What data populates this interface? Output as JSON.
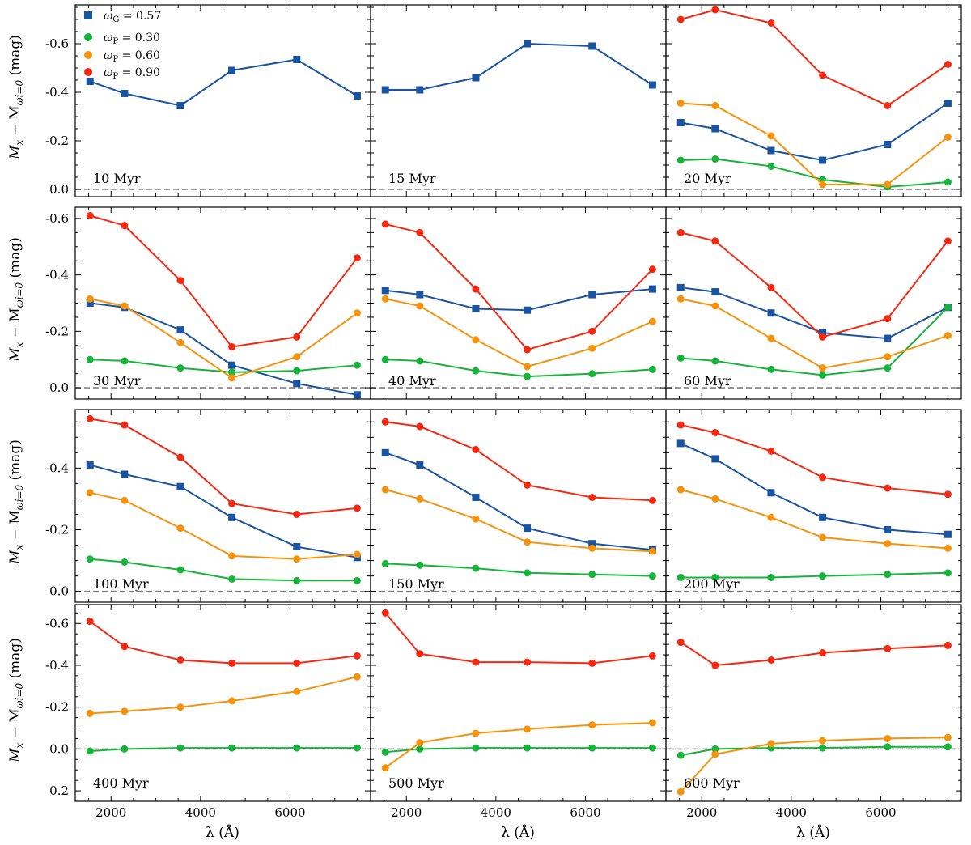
{
  "figure": {
    "xlabel": "λ (Å)",
    "ylabel_main": "M",
    "ylabel_sub1": "x",
    "ylabel_mid": " − M",
    "ylabel_sub2": "ωi=0",
    "ylabel_unit": " (mag)"
  },
  "legend": {
    "placement": "top-left of first panel",
    "entries": [
      {
        "symbol": "ω",
        "sub": "G",
        "value": " = 0.57",
        "marker": "square",
        "color": "#1a53a0"
      },
      {
        "symbol": "ω",
        "sub": "P",
        "value": " = 0.30",
        "marker": "circle",
        "color": "#18b33a"
      },
      {
        "symbol": "ω",
        "sub": "P",
        "value": " = 0.60",
        "marker": "circle",
        "color": "#f5930f"
      },
      {
        "symbol": "ω",
        "sub": "P",
        "value": " = 0.90",
        "marker": "circle",
        "color": "#f52812"
      }
    ]
  },
  "colors": {
    "wG057": "#1a53a0",
    "wP030": "#18b33a",
    "wP060": "#f5930f",
    "wP090": "#f52812",
    "zero_line": "#808080"
  },
  "chart_data": [
    {
      "type": "line",
      "title": "10 Myr",
      "xlim": [
        1200,
        7800
      ],
      "ylim": [
        0.03,
        -0.76
      ],
      "yticks": [
        0.0,
        -0.2,
        -0.4,
        -0.6
      ],
      "ytick_labels": [
        "0.0",
        "-0.2",
        "-0.4",
        "-0.6"
      ],
      "x": [
        1530,
        2300,
        3550,
        4700,
        6150,
        7500
      ],
      "series": [
        {
          "name": "ωG = 0.57",
          "marker": "square",
          "color": "#1a53a0",
          "values": [
            -0.445,
            -0.395,
            -0.345,
            -0.49,
            -0.535,
            -0.385
          ]
        }
      ]
    },
    {
      "type": "line",
      "title": "15 Myr",
      "xlim": [
        1200,
        7800
      ],
      "ylim": [
        0.03,
        -0.76
      ],
      "yticks": [
        0.0,
        -0.2,
        -0.4,
        -0.6
      ],
      "ytick_labels": [
        "0.0",
        "-0.2",
        "-0.4",
        "-0.6"
      ],
      "x": [
        1530,
        2300,
        3550,
        4700,
        6150,
        7500
      ],
      "series": [
        {
          "name": "ωG = 0.57",
          "marker": "square",
          "color": "#1a53a0",
          "values": [
            -0.41,
            -0.41,
            -0.46,
            -0.6,
            -0.59,
            -0.43
          ]
        }
      ]
    },
    {
      "type": "line",
      "title": "20 Myr",
      "xlim": [
        1200,
        7800
      ],
      "ylim": [
        0.03,
        -0.76
      ],
      "yticks": [
        0.0,
        -0.2,
        -0.4,
        -0.6
      ],
      "ytick_labels": [
        "0.0",
        "-0.2",
        "-0.4",
        "-0.6"
      ],
      "x": [
        1530,
        2300,
        3550,
        4700,
        6150,
        7500
      ],
      "series": [
        {
          "name": "ωG = 0.57",
          "marker": "square",
          "color": "#1a53a0",
          "values": [
            -0.275,
            -0.25,
            -0.16,
            -0.12,
            -0.185,
            -0.355
          ]
        },
        {
          "name": "ωP = 0.30",
          "marker": "circle",
          "color": "#18b33a",
          "values": [
            -0.12,
            -0.125,
            -0.095,
            -0.04,
            -0.01,
            -0.03
          ]
        },
        {
          "name": "ωP = 0.60",
          "marker": "circle",
          "color": "#f5930f",
          "values": [
            -0.355,
            -0.345,
            -0.22,
            -0.02,
            -0.02,
            -0.215
          ]
        },
        {
          "name": "ωP = 0.90",
          "marker": "circle",
          "color": "#f52812",
          "values": [
            -0.7,
            -0.74,
            -0.685,
            -0.47,
            -0.345,
            -0.515
          ]
        }
      ]
    },
    {
      "type": "line",
      "title": "30 Myr",
      "xlim": [
        1200,
        7800
      ],
      "ylim": [
        0.04,
        -0.64
      ],
      "yticks": [
        0.0,
        -0.2,
        -0.4,
        -0.6
      ],
      "ytick_labels": [
        "0.0",
        "-0.2",
        "-0.4",
        "-0.6"
      ],
      "x": [
        1530,
        2300,
        3550,
        4700,
        6150,
        7500
      ],
      "series": [
        {
          "name": "ωG = 0.57",
          "marker": "square",
          "color": "#1a53a0",
          "values": [
            -0.3,
            -0.285,
            -0.205,
            -0.08,
            -0.015,
            0.025
          ]
        },
        {
          "name": "ωP = 0.30",
          "marker": "circle",
          "color": "#18b33a",
          "values": [
            -0.1,
            -0.095,
            -0.07,
            -0.055,
            -0.06,
            -0.08
          ]
        },
        {
          "name": "ωP = 0.60",
          "marker": "circle",
          "color": "#f5930f",
          "values": [
            -0.315,
            -0.29,
            -0.16,
            -0.035,
            -0.11,
            -0.265
          ]
        },
        {
          "name": "ωP = 0.90",
          "marker": "circle",
          "color": "#f52812",
          "values": [
            -0.61,
            -0.575,
            -0.38,
            -0.145,
            -0.18,
            -0.46
          ]
        }
      ]
    },
    {
      "type": "line",
      "title": "40 Myr",
      "xlim": [
        1200,
        7800
      ],
      "ylim": [
        0.04,
        -0.64
      ],
      "yticks": [
        0.0,
        -0.2,
        -0.4,
        -0.6
      ],
      "ytick_labels": [
        "0.0",
        "-0.2",
        "-0.4",
        "-0.6"
      ],
      "x": [
        1530,
        2300,
        3550,
        4700,
        6150,
        7500
      ],
      "series": [
        {
          "name": "ωG = 0.57",
          "marker": "square",
          "color": "#1a53a0",
          "values": [
            -0.345,
            -0.33,
            -0.28,
            -0.275,
            -0.33,
            -0.35
          ]
        },
        {
          "name": "ωP = 0.30",
          "marker": "circle",
          "color": "#18b33a",
          "values": [
            -0.1,
            -0.095,
            -0.06,
            -0.04,
            -0.05,
            -0.065
          ]
        },
        {
          "name": "ωP = 0.60",
          "marker": "circle",
          "color": "#f5930f",
          "values": [
            -0.315,
            -0.29,
            -0.17,
            -0.075,
            -0.14,
            -0.235
          ]
        },
        {
          "name": "ωP = 0.90",
          "marker": "circle",
          "color": "#f52812",
          "values": [
            -0.58,
            -0.55,
            -0.35,
            -0.135,
            -0.2,
            -0.42
          ]
        }
      ]
    },
    {
      "type": "line",
      "title": "60 Myr",
      "xlim": [
        1200,
        7800
      ],
      "ylim": [
        0.04,
        -0.64
      ],
      "yticks": [
        0.0,
        -0.2,
        -0.4,
        -0.6
      ],
      "ytick_labels": [
        "0.0",
        "-0.2",
        "-0.4",
        "-0.6"
      ],
      "x": [
        1530,
        2300,
        3550,
        4700,
        6150,
        7500
      ],
      "series": [
        {
          "name": "ωG = 0.57",
          "marker": "square",
          "color": "#1a53a0",
          "values": [
            -0.355,
            -0.34,
            -0.265,
            -0.195,
            -0.175,
            -0.285
          ]
        },
        {
          "name": "ωP = 0.30",
          "marker": "circle",
          "color": "#18b33a",
          "values": [
            -0.105,
            -0.095,
            -0.065,
            -0.045,
            -0.07,
            -0.285
          ]
        },
        {
          "name": "ωP = 0.60",
          "marker": "circle",
          "color": "#f5930f",
          "values": [
            -0.315,
            -0.29,
            -0.175,
            -0.07,
            -0.11,
            -0.185
          ]
        },
        {
          "name": "ωP = 0.90",
          "marker": "circle",
          "color": "#f52812",
          "values": [
            -0.55,
            -0.52,
            -0.355,
            -0.18,
            -0.245,
            -0.52
          ]
        }
      ]
    },
    {
      "type": "line",
      "title": "100 Myr",
      "xlim": [
        1200,
        7800
      ],
      "ylim": [
        0.035,
        -0.59
      ],
      "yticks": [
        0.0,
        -0.2,
        -0.4
      ],
      "ytick_labels": [
        "0.0",
        "-0.2",
        "-0.4"
      ],
      "x": [
        1530,
        2300,
        3550,
        4700,
        6150,
        7500
      ],
      "series": [
        {
          "name": "ωG = 0.57",
          "marker": "square",
          "color": "#1a53a0",
          "values": [
            -0.41,
            -0.38,
            -0.34,
            -0.24,
            -0.145,
            -0.11
          ]
        },
        {
          "name": "ωP = 0.30",
          "marker": "circle",
          "color": "#18b33a",
          "values": [
            -0.105,
            -0.095,
            -0.07,
            -0.04,
            -0.035,
            -0.035
          ]
        },
        {
          "name": "ωP = 0.60",
          "marker": "circle",
          "color": "#f5930f",
          "values": [
            -0.32,
            -0.295,
            -0.205,
            -0.115,
            -0.105,
            -0.12
          ]
        },
        {
          "name": "ωP = 0.90",
          "marker": "circle",
          "color": "#f52812",
          "values": [
            -0.56,
            -0.54,
            -0.435,
            -0.285,
            -0.25,
            -0.27
          ]
        }
      ]
    },
    {
      "type": "line",
      "title": "150 Myr",
      "xlim": [
        1200,
        7800
      ],
      "ylim": [
        0.035,
        -0.59
      ],
      "yticks": [
        0.0,
        -0.2,
        -0.4
      ],
      "ytick_labels": [
        "0.0",
        "-0.2",
        "-0.4"
      ],
      "x": [
        1530,
        2300,
        3550,
        4700,
        6150,
        7500
      ],
      "series": [
        {
          "name": "ωG = 0.57",
          "marker": "square",
          "color": "#1a53a0",
          "values": [
            -0.45,
            -0.41,
            -0.305,
            -0.205,
            -0.155,
            -0.135
          ]
        },
        {
          "name": "ωP = 0.30",
          "marker": "circle",
          "color": "#18b33a",
          "values": [
            -0.09,
            -0.085,
            -0.075,
            -0.06,
            -0.055,
            -0.05
          ]
        },
        {
          "name": "ωP = 0.60",
          "marker": "circle",
          "color": "#f5930f",
          "values": [
            -0.33,
            -0.3,
            -0.235,
            -0.16,
            -0.14,
            -0.13
          ]
        },
        {
          "name": "ωP = 0.90",
          "marker": "circle",
          "color": "#f52812",
          "values": [
            -0.55,
            -0.535,
            -0.46,
            -0.345,
            -0.305,
            -0.295
          ]
        }
      ]
    },
    {
      "type": "line",
      "title": "200 Myr",
      "xlim": [
        1200,
        7800
      ],
      "ylim": [
        0.035,
        -0.59
      ],
      "yticks": [
        0.0,
        -0.2,
        -0.4
      ],
      "ytick_labels": [
        "0.0",
        "-0.2",
        "-0.4"
      ],
      "x": [
        1530,
        2300,
        3550,
        4700,
        6150,
        7500
      ],
      "series": [
        {
          "name": "ωG = 0.57",
          "marker": "square",
          "color": "#1a53a0",
          "values": [
            -0.48,
            -0.43,
            -0.32,
            -0.24,
            -0.2,
            -0.185
          ]
        },
        {
          "name": "ωP = 0.30",
          "marker": "circle",
          "color": "#18b33a",
          "values": [
            -0.045,
            -0.045,
            -0.045,
            -0.05,
            -0.055,
            -0.06
          ]
        },
        {
          "name": "ωP = 0.60",
          "marker": "circle",
          "color": "#f5930f",
          "values": [
            -0.33,
            -0.3,
            -0.24,
            -0.175,
            -0.155,
            -0.14
          ]
        },
        {
          "name": "ωP = 0.90",
          "marker": "circle",
          "color": "#f52812",
          "values": [
            -0.54,
            -0.515,
            -0.455,
            -0.37,
            -0.335,
            -0.315
          ]
        }
      ]
    },
    {
      "type": "line",
      "title": "400 Myr",
      "xlim": [
        1200,
        7800
      ],
      "ylim": [
        0.25,
        -0.69
      ],
      "yticks": [
        0.2,
        0.0,
        -0.2,
        -0.4,
        -0.6
      ],
      "ytick_labels": [
        "0.2",
        "0.0",
        "-0.2",
        "-0.4",
        "-0.6"
      ],
      "x": [
        1530,
        2300,
        3550,
        4700,
        6150,
        7500
      ],
      "series": [
        {
          "name": "ωP = 0.30",
          "marker": "circle",
          "color": "#18b33a",
          "values": [
            0.01,
            0.0,
            -0.005,
            -0.005,
            -0.005,
            -0.005
          ]
        },
        {
          "name": "ωP = 0.60",
          "marker": "circle",
          "color": "#f5930f",
          "values": [
            -0.17,
            -0.18,
            -0.2,
            -0.23,
            -0.275,
            -0.345
          ]
        },
        {
          "name": "ωP = 0.90",
          "marker": "circle",
          "color": "#f52812",
          "values": [
            -0.61,
            -0.49,
            -0.425,
            -0.41,
            -0.41,
            -0.445
          ]
        }
      ]
    },
    {
      "type": "line",
      "title": "500 Myr",
      "xlim": [
        1200,
        7800
      ],
      "ylim": [
        0.25,
        -0.69
      ],
      "yticks": [
        0.2,
        0.0,
        -0.2,
        -0.4,
        -0.6
      ],
      "ytick_labels": [
        "0.2",
        "0.0",
        "-0.2",
        "-0.4",
        "-0.6"
      ],
      "x": [
        1530,
        2300,
        3550,
        4700,
        6150,
        7500
      ],
      "series": [
        {
          "name": "ωP = 0.30",
          "marker": "circle",
          "color": "#18b33a",
          "values": [
            0.015,
            0.0,
            -0.005,
            -0.005,
            -0.005,
            -0.005
          ]
        },
        {
          "name": "ωP = 0.60",
          "marker": "circle",
          "color": "#f5930f",
          "values": [
            0.09,
            -0.03,
            -0.075,
            -0.095,
            -0.115,
            -0.125
          ]
        },
        {
          "name": "ωP = 0.90",
          "marker": "circle",
          "color": "#f52812",
          "values": [
            -0.65,
            -0.455,
            -0.415,
            -0.415,
            -0.41,
            -0.445
          ]
        }
      ]
    },
    {
      "type": "line",
      "title": "600 Myr",
      "xlim": [
        1200,
        7800
      ],
      "ylim": [
        0.25,
        -0.69
      ],
      "yticks": [
        0.2,
        0.0,
        -0.2,
        -0.4,
        -0.6
      ],
      "ytick_labels": [
        "0.2",
        "0.0",
        "-0.2",
        "-0.4",
        "-0.6"
      ],
      "x": [
        1530,
        2300,
        3550,
        4700,
        6150,
        7500
      ],
      "series": [
        {
          "name": "ωP = 0.30",
          "marker": "circle",
          "color": "#18b33a",
          "values": [
            0.03,
            0.0,
            -0.005,
            -0.005,
            -0.01,
            -0.01
          ]
        },
        {
          "name": "ωP = 0.60",
          "marker": "circle",
          "color": "#f5930f",
          "values": [
            0.205,
            0.025,
            -0.025,
            -0.04,
            -0.05,
            -0.055
          ]
        },
        {
          "name": "ωP = 0.90",
          "marker": "circle",
          "color": "#f52812",
          "values": [
            -0.51,
            -0.4,
            -0.425,
            -0.46,
            -0.48,
            -0.495
          ]
        }
      ]
    }
  ],
  "xticks": [
    2000,
    4000,
    6000
  ],
  "xtick_labels": [
    "2000",
    "4000",
    "6000"
  ]
}
